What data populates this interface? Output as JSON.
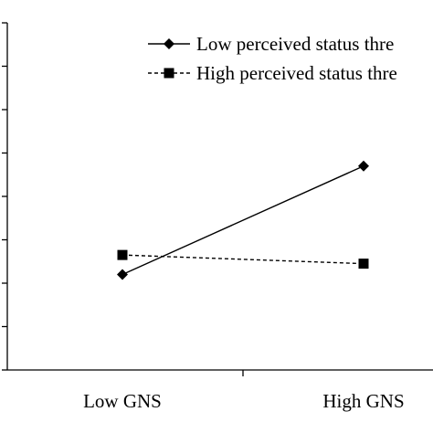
{
  "chart_data": {
    "type": "line",
    "categories": [
      "Low GNS",
      "High GNS"
    ],
    "series": [
      {
        "name": "Low perceived status thre",
        "values": [
          3.2,
          5.7
        ],
        "marker": "diamond",
        "line_style": "solid",
        "color": "#000000"
      },
      {
        "name": "High perceived status thre",
        "values": [
          3.65,
          3.45
        ],
        "marker": "square",
        "line_style": "dashed",
        "color": "#000000"
      }
    ],
    "ylim": [
      1,
      9
    ],
    "y_tick_count": 9,
    "grid": false,
    "legend_position": "top-right"
  }
}
